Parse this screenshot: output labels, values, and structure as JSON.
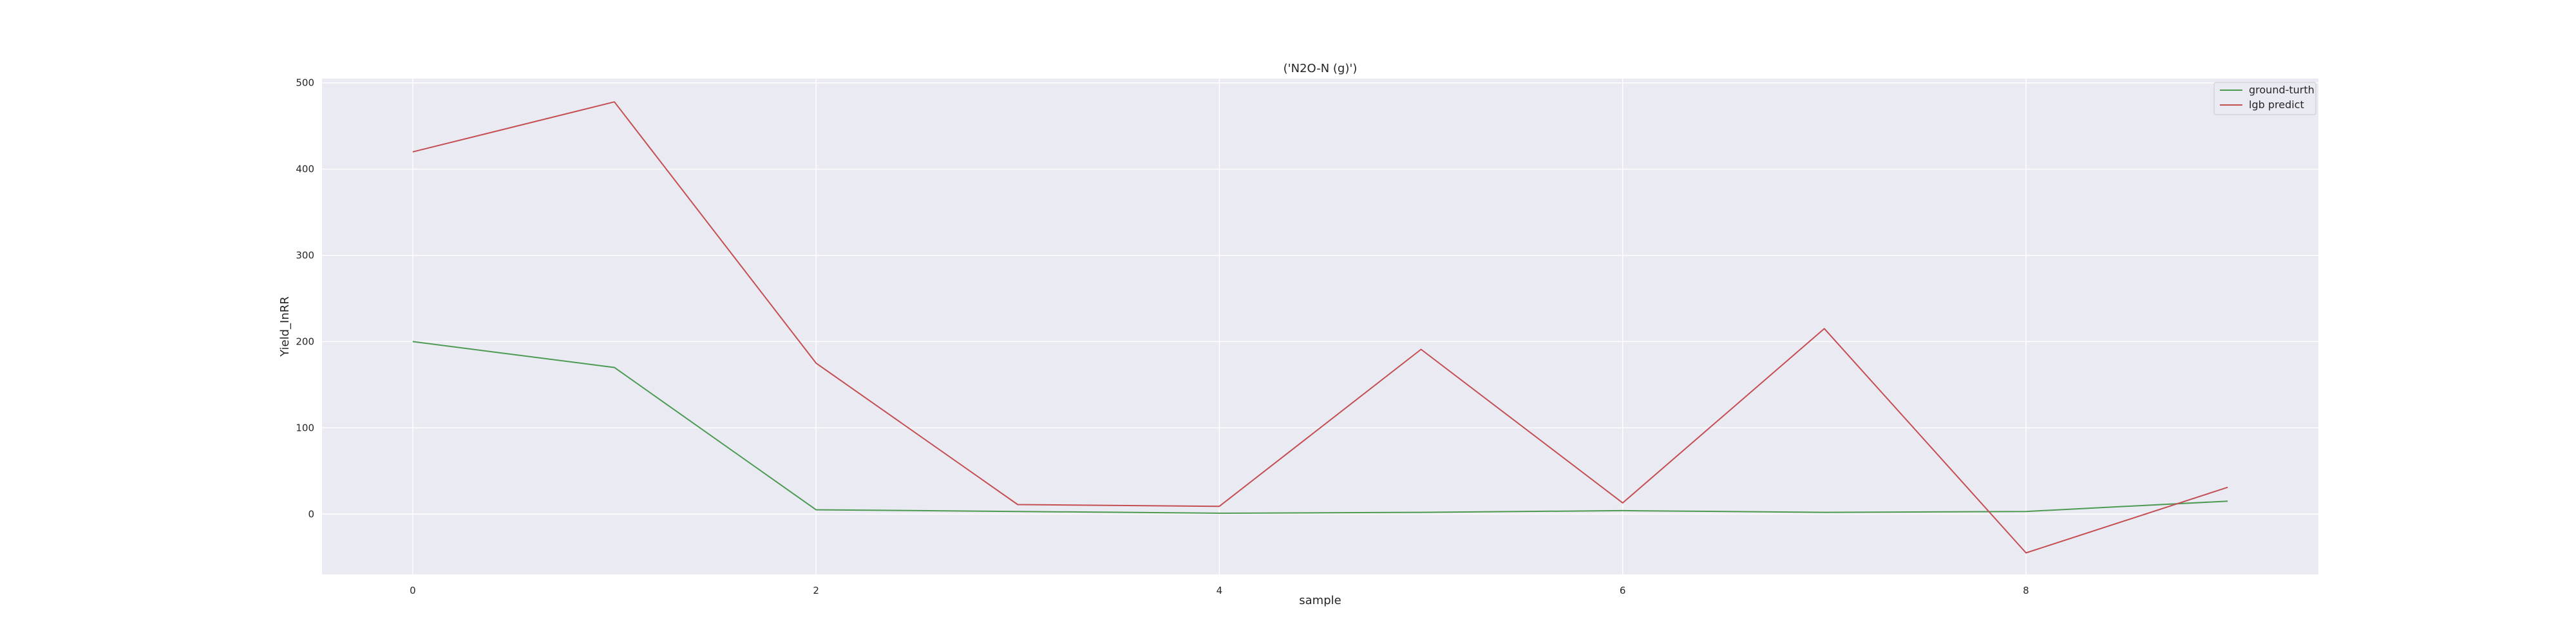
{
  "chart_data": {
    "type": "line",
    "title": "('N2O-N (g)')",
    "xlabel": "sample",
    "ylabel": "Yield_InRR",
    "x": [
      0,
      1,
      2,
      3,
      4,
      5,
      6,
      7,
      8,
      9
    ],
    "xlim": [
      -0.45,
      9.45
    ],
    "ylim": [
      -70,
      505
    ],
    "x_ticks": [
      0,
      2,
      4,
      6,
      8
    ],
    "y_ticks": [
      0,
      100,
      200,
      300,
      400,
      500
    ],
    "grid": true,
    "legend_placement": "top-right",
    "background": "#eaeaf2",
    "grid_color": "#ffffff",
    "series": [
      {
        "name": "ground-turth",
        "color": "#4c9a52",
        "values": [
          200,
          170,
          5,
          3,
          1,
          2,
          4,
          2,
          3,
          15
        ]
      },
      {
        "name": "lgb predict",
        "color": "#c44e52",
        "values": [
          420,
          478,
          175,
          11,
          9,
          191,
          13,
          215,
          -45,
          31
        ]
      }
    ]
  }
}
